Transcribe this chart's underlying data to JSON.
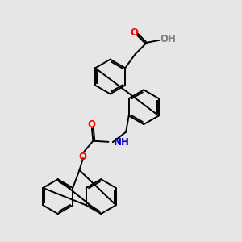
{
  "background_color": "#e6e6e6",
  "atom_colors": {
    "O": "#ff0000",
    "N": "#0000cd",
    "C": "#000000",
    "H": "#7f7f7f"
  },
  "bond_lw": 1.4,
  "figsize": [
    3.0,
    3.0
  ],
  "dpi": 100
}
